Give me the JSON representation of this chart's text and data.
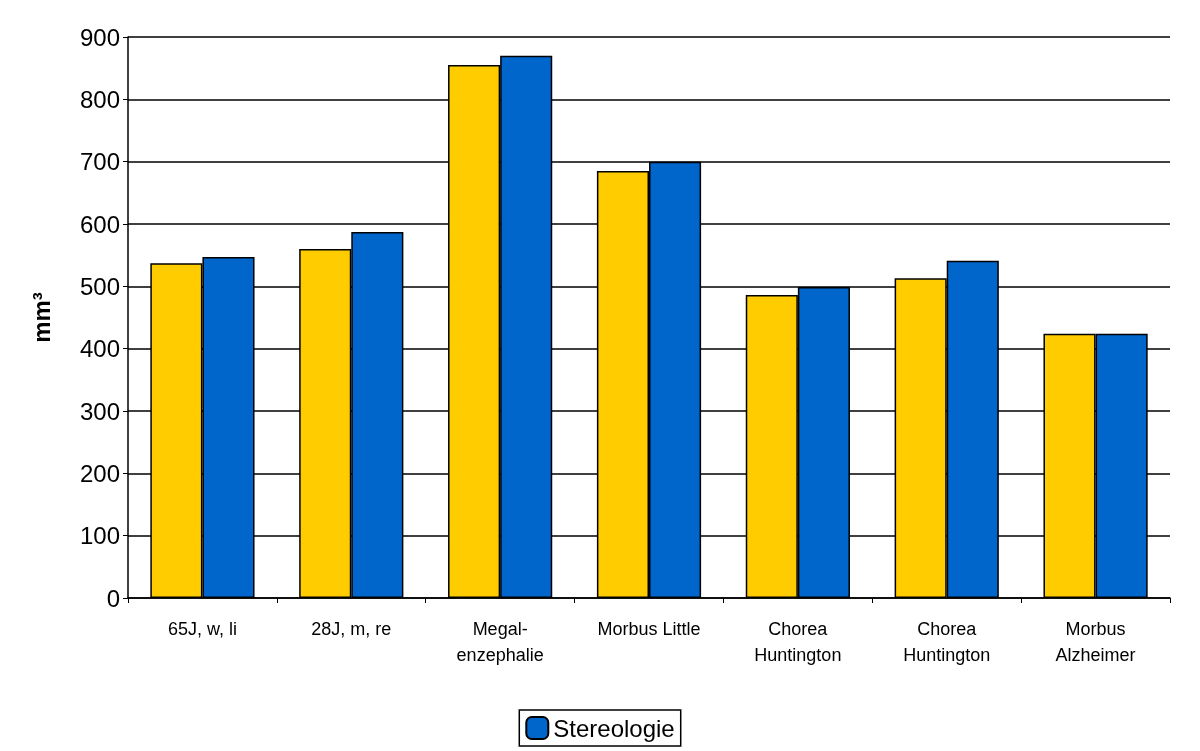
{
  "chart_data": {
    "type": "bar",
    "ylabel": "mm³",
    "categories": [
      "65J, w, li",
      "28J, m, re",
      "Megal-\nenzephalie",
      "Morbus Little",
      "Chorea\nHuntington",
      "Chorea\nHuntington",
      "Morbus\nAlzheimer"
    ],
    "series": [
      {
        "color": "#ffcc00",
        "values": [
          537,
          560,
          855,
          685,
          486,
          513,
          424
        ]
      },
      {
        "name": "Stereologie",
        "color": "#0066cc",
        "values": [
          547,
          587,
          870,
          700,
          499,
          541,
          424
        ]
      }
    ],
    "ylim": [
      0,
      900
    ],
    "yticks": [
      0,
      100,
      200,
      300,
      400,
      500,
      600,
      700,
      800,
      900
    ],
    "grid": "y",
    "legend": "bottom"
  }
}
